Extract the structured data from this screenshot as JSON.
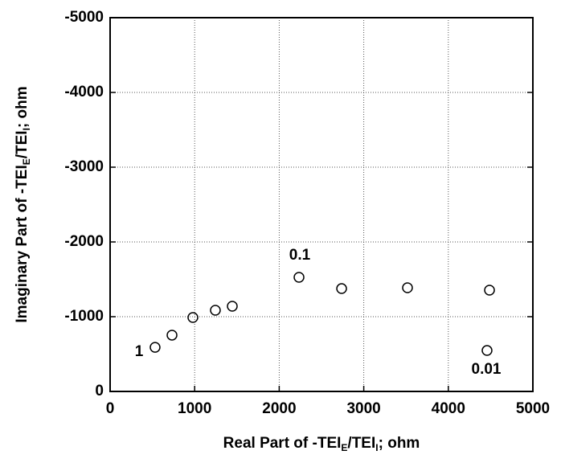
{
  "chart_data": {
    "type": "scatter",
    "xlabel": [
      "Real Part of -TEI",
      "E",
      "/TEI",
      "I",
      "; ohm"
    ],
    "ylabel": [
      "Imaginary Part of -TEI",
      "E",
      "/TEI",
      "I",
      "; ohm"
    ],
    "x": [
      532,
      732,
      979,
      1245,
      1445,
      2234,
      2738,
      3517,
      4487,
      4458
    ],
    "series": [
      {
        "color": "#000000",
        "values": [
          -590,
          -753,
          -989,
          -1086,
          -1140,
          -1527,
          -1376,
          -1387,
          -1355,
          -548
        ]
      }
    ],
    "annotations": [
      "1",
      "0.1",
      "0.01"
    ],
    "xlim": [
      0,
      5000
    ],
    "xticks": [
      0,
      1000,
      2000,
      3000,
      4000,
      5000
    ],
    "ylim": [
      0,
      -5000
    ],
    "yticks": [
      0,
      -1000,
      -2000,
      -3000,
      -4000,
      -5000
    ],
    "grid": true
  }
}
